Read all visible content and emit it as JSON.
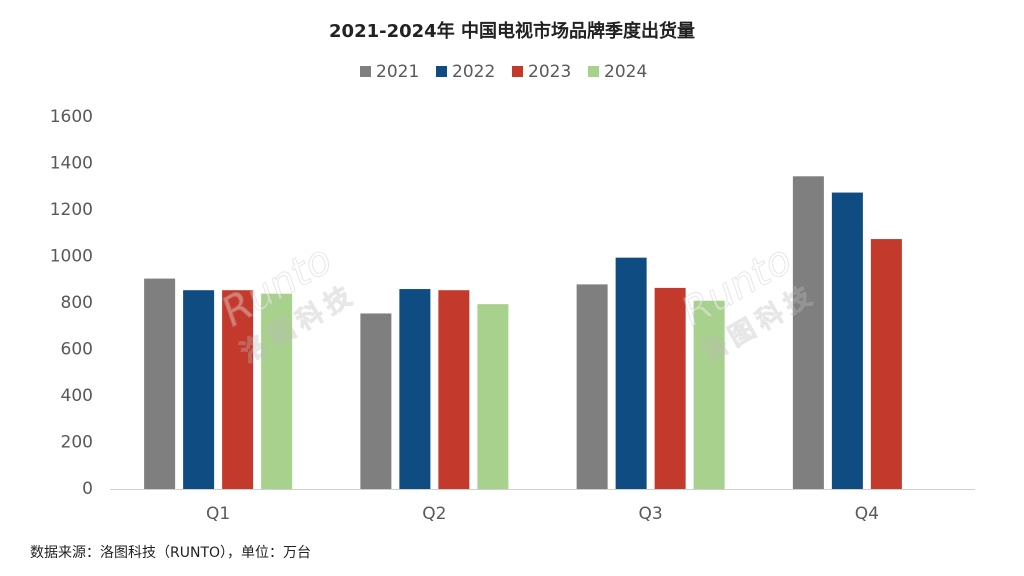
{
  "chart_data": {
    "type": "bar",
    "title": "2021-2024年 中国电视市场品牌季度出货量",
    "categories": [
      "Q1",
      "Q2",
      "Q3",
      "Q4"
    ],
    "series": [
      {
        "name": "2021",
        "color": "#7f7f7f",
        "values": [
          905,
          755,
          880,
          1345
        ]
      },
      {
        "name": "2022",
        "color": "#0f4c81",
        "values": [
          855,
          860,
          995,
          1275
        ]
      },
      {
        "name": "2023",
        "color": "#c3392b",
        "values": [
          855,
          855,
          865,
          1075
        ]
      },
      {
        "name": "2024",
        "color": "#a9d18e",
        "values": [
          840,
          795,
          810,
          null
        ]
      }
    ],
    "ylim": [
      0,
      1600
    ],
    "yticks": [
      0,
      200,
      400,
      600,
      800,
      1000,
      1200,
      1400,
      1600
    ],
    "grid": false,
    "legend": "top",
    "watermark": [
      "Runto",
      "洛图科技"
    ],
    "source": "数据来源：洛图科技（RUNTO），单位：万台"
  }
}
